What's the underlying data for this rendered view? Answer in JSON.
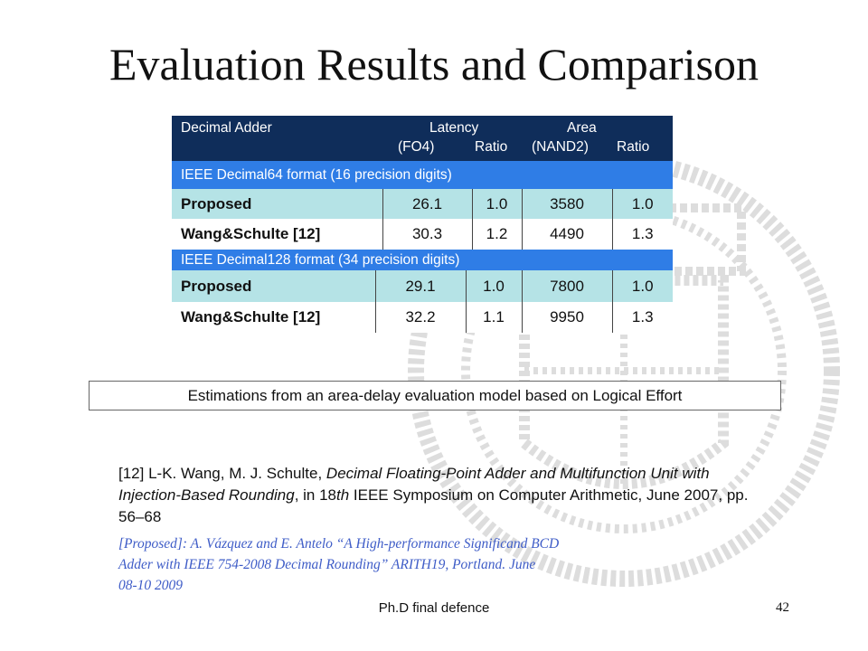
{
  "slide": {
    "title": "Evaluation Results and Comparison",
    "footer": "Ph.D final defence",
    "page_number": "42"
  },
  "table": {
    "header": {
      "col_name": "Decimal Adder",
      "latency": "Latency",
      "latency_unit": "(FO4)",
      "latency_ratio": "Ratio",
      "area": "Area",
      "area_unit": "(NAND2)",
      "area_ratio": "Ratio"
    },
    "sections": [
      {
        "label": "IEEE Decimal64 format (16 precision digits)",
        "rows": [
          {
            "name": "Proposed",
            "latency": "26.1",
            "latency_ratio": "1.0",
            "area": "3580",
            "area_ratio": "1.0"
          },
          {
            "name": "Wang&Schulte  [12]",
            "latency": "30.3",
            "latency_ratio": "1.2",
            "area": "4490",
            "area_ratio": "1.3"
          }
        ]
      },
      {
        "label": "IEEE Decimal128 format (34 precision digits)",
        "rows": [
          {
            "name": "Proposed",
            "latency": "29.1",
            "latency_ratio": "1.0",
            "area": "7800",
            "area_ratio": "1.0"
          },
          {
            "name": "Wang&Schulte  [12]",
            "latency": "32.2",
            "latency_ratio": "1.1",
            "area": "9950",
            "area_ratio": "1.3"
          }
        ]
      }
    ],
    "colors": {
      "header_bg": "#0f2d5a",
      "section_bg": "#2f7de6",
      "proposed_row_bg": "#b5e3e6"
    }
  },
  "note": "Estimations from an area-delay evaluation model based on Logical Effort",
  "references": {
    "ref12_prefix": "[12] L-K. Wang, M. J. Schulte, ",
    "ref12_title": "Decimal Floating-Point Adder and Multifunction Unit with Injection-Based Rounding",
    "ref12_mid": ", in 18",
    "ref12_th": "th",
    "ref12_suffix": " IEEE Symposium on Computer Arithmetic, June 2007, pp. 56–68",
    "proposed_line1": "[Proposed]: A. Vázquez and E. Antelo “A High-performance Significand BCD",
    "proposed_line2": "Adder with IEEE 754-2008 Decimal Rounding” ARITH19, Portland. June",
    "proposed_line3": "08-10 2009"
  }
}
